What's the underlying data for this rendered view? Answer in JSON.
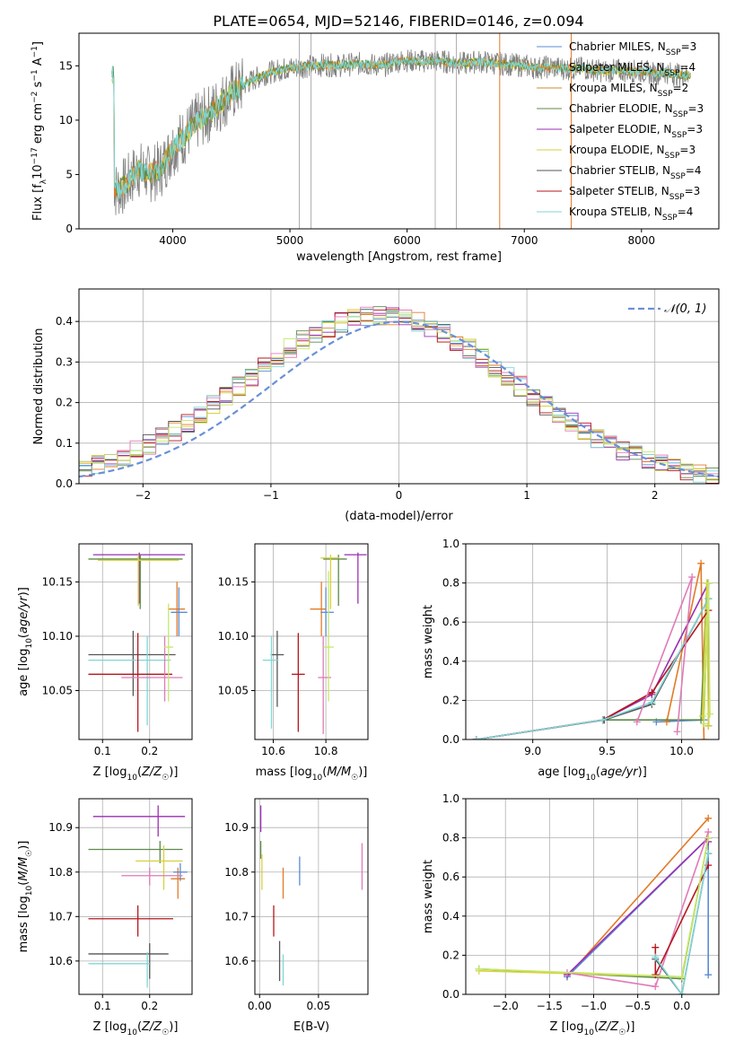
{
  "figure": {
    "title": "PLATE=0654, MJD=52146, FIBERID=0146, z=0.094"
  },
  "colors": {
    "Chabrier MILES": "#5b8bd6",
    "Salpeter MILES": "#e37a26",
    "Kroupa MILES": "#d08a2c",
    "Chabrier ELODIE": "#5c8a4a",
    "Salpeter ELODIE": "#9a2fb0",
    "Kroupa ELODIE": "#d6d23a",
    "Chabrier STELIB": "#555555",
    "Salpeter STELIB": "#b5161e",
    "Kroupa STELIB": "#7fd6d6",
    "extra_pink": "#e07ab8",
    "extra_lime": "#c5e86b",
    "extra_green": "#5c8a4a",
    "data_grey": "#808080",
    "gauss": "#6a8fd8",
    "grid": "#b0b0b0"
  },
  "chart_data": [
    {
      "id": "spectrum",
      "type": "line",
      "title": "PLATE=0654, MJD=52146, FIBERID=0146, z=0.094",
      "xlabel": "wavelength [Angstrom, rest frame]",
      "ylabel": "Flux [f",
      "ylabel_full": "Flux [fλ10−17 erg cm−2 s−1 A−1]",
      "xlim": [
        3200,
        8660
      ],
      "ylim": [
        0,
        18
      ],
      "xticks": [
        4000,
        5000,
        6000,
        7000,
        8000
      ],
      "yticks": [
        0,
        5,
        10,
        15
      ],
      "grid": false,
      "legend_position": "right",
      "legend": [
        {
          "label": "Chabrier MILES",
          "nssp": "3"
        },
        {
          "label": "Salpeter MILES",
          "nssp": "4"
        },
        {
          "label": "Kroupa MILES",
          "nssp": "2"
        },
        {
          "label": "Chabrier ELODIE",
          "nssp": "3"
        },
        {
          "label": "Salpeter ELODIE",
          "nssp": "3"
        },
        {
          "label": "Kroupa ELODIE",
          "nssp": "3"
        },
        {
          "label": "Chabrier STELIB",
          "nssp": "4"
        },
        {
          "label": "Salpeter STELIB",
          "nssp": "3"
        },
        {
          "label": "Kroupa STELIB",
          "nssp": "4"
        }
      ],
      "nssp_prefix": "N",
      "nssp_sub": "SSP",
      "envelope": {
        "x": [
          3500,
          3600,
          3700,
          3800,
          3900,
          4000,
          4100,
          4200,
          4300,
          4400,
          4500,
          4600,
          4700,
          4800,
          4900,
          5000,
          5100,
          5200,
          5300,
          5400,
          5500,
          5600,
          5700,
          5800,
          5900,
          6000,
          6100,
          6200,
          6300,
          6400,
          6500,
          6600,
          6700,
          6800,
          6900,
          7000,
          7100,
          7200,
          7300,
          7400,
          7500,
          7600,
          7700,
          7800,
          7900,
          8000,
          8100,
          8200,
          8300,
          8400
        ],
        "y": [
          3.5,
          4.0,
          5.5,
          5.0,
          5.5,
          7.5,
          8.5,
          9.8,
          10.5,
          11.5,
          12.5,
          13.2,
          13.8,
          14.3,
          14.6,
          14.8,
          14.9,
          15.0,
          15.1,
          15.0,
          15.1,
          15.2,
          15.1,
          15.0,
          15.4,
          15.5,
          15.4,
          15.5,
          15.4,
          15.3,
          15.2,
          15.4,
          15.3,
          15.2,
          15.1,
          15.0,
          14.8,
          14.9,
          14.8,
          14.7,
          14.8,
          14.6,
          14.5,
          14.6,
          14.5,
          14.5,
          14.3,
          14.4,
          14.2,
          14.1
        ]
      },
      "spikes_x": [
        5080,
        5180,
        6240,
        6420,
        6790,
        7400
      ]
    },
    {
      "id": "residuals",
      "type": "line",
      "xlabel": "(data-model)/error",
      "ylabel": "Normed distribution",
      "xlim": [
        -2.5,
        2.5
      ],
      "ylim": [
        0,
        0.48
      ],
      "xticks": [
        -2,
        -1,
        0,
        1,
        2
      ],
      "yticks": [
        0.0,
        0.1,
        0.2,
        0.3,
        0.4
      ],
      "grid": true,
      "legend_position": "top-right",
      "gauss_label": "𝒩(0, 1)"
    },
    {
      "id": "age_vs_Z",
      "type": "scatter",
      "xlabel": "Z [log",
      "xlabel_full": "Z [log10(Z/Z☉)]",
      "ylabel_full": "age [log10(age/yr)]",
      "xlim": [
        0.05,
        0.29
      ],
      "ylim": [
        10.005,
        10.185
      ],
      "xticks": [
        0.1,
        0.2
      ],
      "yticks": [
        10.05,
        10.1,
        10.15
      ],
      "grid": true,
      "points": [
        {
          "series": "Salpeter ELODIE",
          "x": 0.178,
          "y": 10.175,
          "xerr": [
            0.08,
            0.275
          ],
          "yerr": [
            10.13,
            10.177
          ]
        },
        {
          "series": "Chabrier ELODIE",
          "x": 0.18,
          "y": 10.171,
          "xerr": [
            0.07,
            0.27
          ],
          "yerr": [
            10.125,
            10.175
          ]
        },
        {
          "series": "Kroupa ELODIE",
          "x": 0.176,
          "y": 10.17,
          "xerr": [
            0.09,
            0.262
          ],
          "yerr": [
            10.128,
            10.175
          ]
        },
        {
          "series": "Salpeter MILES",
          "x": 0.258,
          "y": 10.125,
          "xerr": [
            0.24,
            0.275
          ],
          "yerr": [
            10.1,
            10.15
          ]
        },
        {
          "series": "Chabrier MILES",
          "x": 0.262,
          "y": 10.122,
          "xerr": [
            0.245,
            0.28
          ],
          "yerr": [
            10.1,
            10.145
          ]
        },
        {
          "series": "Chabrier STELIB",
          "x": 0.165,
          "y": 10.083,
          "xerr": [
            0.07,
            0.255
          ],
          "yerr": [
            10.045,
            10.105
          ]
        },
        {
          "series": "Kroupa STELIB",
          "x": 0.195,
          "y": 10.078,
          "xerr": [
            0.07,
            0.245
          ],
          "yerr": [
            10.018,
            10.1
          ]
        },
        {
          "series": "Salpeter STELIB",
          "x": 0.175,
          "y": 10.065,
          "xerr": [
            0.07,
            0.248
          ],
          "yerr": [
            10.012,
            10.103
          ]
        },
        {
          "series": "extra_pink",
          "x": 0.232,
          "y": 10.062,
          "xerr": [
            0.14,
            0.27
          ],
          "yerr": [
            10.04,
            10.1
          ]
        },
        {
          "series": "extra_lime",
          "x": 0.24,
          "y": 10.09,
          "xerr": [
            0.23,
            0.25
          ],
          "yerr": [
            10.04,
            10.13
          ]
        }
      ]
    },
    {
      "id": "age_vs_mass",
      "type": "scatter",
      "xlabel_full": "mass [log10(M/M☉)]",
      "xlim": [
        10.53,
        10.96
      ],
      "ylim": [
        10.005,
        10.185
      ],
      "xticks": [
        10.6,
        10.8
      ],
      "yticks": [
        10.05,
        10.1,
        10.15
      ],
      "grid": true,
      "points": [
        {
          "series": "Salpeter ELODIE",
          "x": 10.922,
          "y": 10.175,
          "xerr": [
            10.87,
            10.955
          ],
          "yerr": [
            10.13,
            10.177
          ]
        },
        {
          "series": "Chabrier ELODIE",
          "x": 10.848,
          "y": 10.171,
          "xerr": [
            10.79,
            10.88
          ],
          "yerr": [
            10.128,
            10.175
          ]
        },
        {
          "series": "Kroupa ELODIE",
          "x": 10.818,
          "y": 10.172,
          "xerr": [
            10.78,
            10.85
          ],
          "yerr": [
            10.125,
            10.175
          ]
        },
        {
          "series": "Salpeter MILES",
          "x": 10.783,
          "y": 10.125,
          "xerr": [
            10.74,
            10.8
          ],
          "yerr": [
            10.1,
            10.15
          ]
        },
        {
          "series": "Chabrier MILES",
          "x": 10.8,
          "y": 10.122,
          "xerr": [
            10.78,
            10.83
          ],
          "yerr": [
            10.1,
            10.145
          ]
        },
        {
          "series": "Chabrier STELIB",
          "x": 10.615,
          "y": 10.083,
          "xerr": [
            10.59,
            10.64
          ],
          "yerr": [
            10.035,
            10.105
          ]
        },
        {
          "series": "Kroupa STELIB",
          "x": 10.593,
          "y": 10.078,
          "xerr": [
            10.56,
            10.62
          ],
          "yerr": [
            10.015,
            10.1
          ]
        },
        {
          "series": "Salpeter STELIB",
          "x": 10.695,
          "y": 10.065,
          "xerr": [
            10.67,
            10.72
          ],
          "yerr": [
            10.012,
            10.103
          ]
        },
        {
          "series": "extra_pink",
          "x": 10.79,
          "y": 10.062,
          "xerr": [
            10.77,
            10.82
          ],
          "yerr": [
            10.01,
            10.1
          ]
        },
        {
          "series": "extra_lime",
          "x": 10.81,
          "y": 10.09,
          "xerr": [
            10.79,
            10.83
          ],
          "yerr": [
            10.04,
            10.16
          ]
        }
      ]
    },
    {
      "id": "massweight_vs_age",
      "type": "line",
      "xlabel_full": "age [log10(age/yr)]",
      "ylabel": "mass weight",
      "xlim": [
        8.55,
        10.25
      ],
      "ylim": [
        0,
        1.0
      ],
      "xticks": [
        9.0,
        9.5,
        10.0
      ],
      "yticks": [
        0.0,
        0.2,
        0.4,
        0.6,
        0.8,
        1.0
      ],
      "grid": true,
      "series": [
        {
          "name": "Chabrier MILES",
          "x": [
            9.83,
            10.15,
            10.18
          ],
          "y": [
            0.09,
            0.1,
            0.8
          ]
        },
        {
          "name": "Salpeter MILES",
          "x": [
            9.9,
            10.13,
            10.15
          ],
          "y": [
            0.09,
            0.9,
            0.0
          ]
        },
        {
          "name": "Chabrier ELODIE",
          "x": [
            9.48,
            10.13,
            10.17
          ],
          "y": [
            0.1,
            0.1,
            0.8
          ]
        },
        {
          "name": "Salpeter ELODIE",
          "x": [
            8.62,
            9.47,
            9.8,
            10.18,
            10.18
          ],
          "y": [
            0.0,
            0.1,
            0.23,
            0.8,
            0.07
          ]
        },
        {
          "name": "Kroupa ELODIE",
          "x": [
            10.14,
            10.17,
            10.18
          ],
          "y": [
            0.12,
            0.8,
            0.07
          ]
        },
        {
          "name": "Chabrier STELIB",
          "x": [
            8.62,
            9.48,
            9.8,
            10.18
          ],
          "y": [
            0.0,
            0.1,
            0.18,
            0.72
          ]
        },
        {
          "name": "Salpeter STELIB",
          "x": [
            8.62,
            9.47,
            9.8,
            10.18
          ],
          "y": [
            0.0,
            0.1,
            0.24,
            0.66
          ]
        },
        {
          "name": "Kroupa STELIB",
          "x": [
            8.62,
            9.47,
            9.8,
            10.18
          ],
          "y": [
            0.0,
            0.1,
            0.19,
            0.72
          ]
        },
        {
          "name": "extra_pink",
          "x": [
            9.7,
            10.07,
            9.97
          ],
          "y": [
            0.09,
            0.83,
            0.04
          ]
        },
        {
          "name": "extra_lime",
          "x": [
            10.15,
            10.18,
            10.19
          ],
          "y": [
            0.08,
            0.8,
            0.13
          ]
        }
      ]
    },
    {
      "id": "mass_vs_Z",
      "type": "scatter",
      "xlabel_full": "Z [log10(Z/Z☉)]",
      "ylabel_full": "mass [log10(M/M☉)]",
      "xlim": [
        0.05,
        0.29
      ],
      "ylim": [
        10.525,
        10.965
      ],
      "xticks": [
        0.1,
        0.2
      ],
      "yticks": [
        10.6,
        10.7,
        10.8,
        10.9
      ],
      "grid": true,
      "points": [
        {
          "series": "Salpeter ELODIE",
          "x": 0.218,
          "y": 10.925,
          "xerr": [
            0.08,
            0.275
          ],
          "yerr": [
            10.88,
            10.95
          ]
        },
        {
          "series": "Chabrier ELODIE",
          "x": 0.222,
          "y": 10.851,
          "xerr": [
            0.07,
            0.27
          ],
          "yerr": [
            10.82,
            10.87
          ]
        },
        {
          "series": "Kroupa ELODIE",
          "x": 0.23,
          "y": 10.825,
          "xerr": [
            0.17,
            0.27
          ],
          "yerr": [
            10.76,
            10.86
          ]
        },
        {
          "series": "Salpeter MILES",
          "x": 0.26,
          "y": 10.785,
          "xerr": [
            0.245,
            0.275
          ],
          "yerr": [
            10.74,
            10.81
          ]
        },
        {
          "series": "Chabrier MILES",
          "x": 0.265,
          "y": 10.8,
          "xerr": [
            0.25,
            0.28
          ],
          "yerr": [
            10.78,
            10.82
          ]
        },
        {
          "series": "extra_pink",
          "x": 0.2,
          "y": 10.792,
          "xerr": [
            0.14,
            0.27
          ],
          "yerr": [
            10.77,
            10.81
          ]
        },
        {
          "series": "Salpeter STELIB",
          "x": 0.175,
          "y": 10.695,
          "xerr": [
            0.07,
            0.25
          ],
          "yerr": [
            10.655,
            10.725
          ]
        },
        {
          "series": "Chabrier STELIB",
          "x": 0.2,
          "y": 10.616,
          "xerr": [
            0.07,
            0.24
          ],
          "yerr": [
            10.56,
            10.64
          ]
        },
        {
          "series": "Kroupa STELIB",
          "x": 0.195,
          "y": 10.594,
          "xerr": [
            0.07,
            0.2
          ],
          "yerr": [
            10.54,
            10.62
          ]
        }
      ]
    },
    {
      "id": "mass_vs_ebv",
      "type": "scatter",
      "xlabel": "E(B-V)",
      "xlim": [
        -0.004,
        0.092
      ],
      "ylim": [
        10.525,
        10.965
      ],
      "xticks": [
        0.0,
        0.05
      ],
      "yticks": [
        10.6,
        10.7,
        10.8,
        10.9
      ],
      "grid": true,
      "points": [
        {
          "series": "Salpeter ELODIE",
          "x": 0.001,
          "y": 10.925,
          "yerr": [
            10.89,
            10.95
          ]
        },
        {
          "series": "Chabrier ELODIE",
          "x": 0.001,
          "y": 10.851,
          "yerr": [
            10.83,
            10.87
          ]
        },
        {
          "series": "Kroupa ELODIE",
          "x": 0.002,
          "y": 10.8,
          "yerr": [
            10.76,
            10.84
          ]
        },
        {
          "series": "Salpeter MILES",
          "x": 0.02,
          "y": 10.78,
          "yerr": [
            10.74,
            10.81
          ]
        },
        {
          "series": "Chabrier MILES",
          "x": 0.034,
          "y": 10.8,
          "yerr": [
            10.77,
            10.835
          ]
        },
        {
          "series": "extra_pink",
          "x": 0.087,
          "y": 10.81,
          "yerr": [
            10.76,
            10.865
          ]
        },
        {
          "series": "Salpeter STELIB",
          "x": 0.012,
          "y": 10.69,
          "yerr": [
            10.655,
            10.725
          ]
        },
        {
          "series": "Chabrier STELIB",
          "x": 0.017,
          "y": 10.6,
          "yerr": [
            10.555,
            10.645
          ]
        },
        {
          "series": "Kroupa STELIB",
          "x": 0.02,
          "y": 10.58,
          "yerr": [
            10.545,
            10.615
          ]
        }
      ]
    },
    {
      "id": "massweight_vs_Z",
      "type": "line",
      "xlabel_full": "Z [log10(Z/Z☉)]",
      "ylabel": "mass weight",
      "xlim": [
        -2.45,
        0.42
      ],
      "ylim": [
        0,
        1.0
      ],
      "xticks": [
        -2.0,
        -1.5,
        -1.0,
        -0.5,
        0.0
      ],
      "yticks": [
        0.0,
        0.2,
        0.4,
        0.6,
        0.8,
        1.0
      ],
      "grid": true,
      "series": [
        {
          "name": "Salpeter MILES",
          "x": [
            -1.3,
            0.3
          ],
          "y": [
            0.09,
            0.9
          ]
        },
        {
          "name": "Chabrier MILES",
          "x": [
            -1.3,
            0.3,
            0.3
          ],
          "y": [
            0.09,
            0.8,
            0.1
          ]
        },
        {
          "name": "Chabrier ELODIE",
          "x": [
            -2.3,
            0.0,
            0.3
          ],
          "y": [
            0.13,
            0.08,
            0.8
          ]
        },
        {
          "name": "Kroupa ELODIE",
          "x": [
            -2.3,
            0.0,
            0.3
          ],
          "y": [
            0.12,
            0.09,
            0.8
          ]
        },
        {
          "name": "Salpeter ELODIE",
          "x": [
            -1.3,
            0.3,
            0.3
          ],
          "y": [
            0.1,
            0.8,
            0.78
          ]
        },
        {
          "name": "extra_pink",
          "x": [
            -1.3,
            -0.3,
            0.3
          ],
          "y": [
            0.11,
            0.04,
            0.83
          ]
        },
        {
          "name": "Salpeter STELIB",
          "x": [
            -0.3,
            -0.3,
            0.3
          ],
          "y": [
            0.24,
            0.1,
            0.66
          ]
        },
        {
          "name": "Chabrier STELIB",
          "x": [
            -0.3,
            0.0,
            0.3
          ],
          "y": [
            0.18,
            0.0,
            0.72
          ]
        },
        {
          "name": "Kroupa STELIB",
          "x": [
            -0.3,
            0.0,
            0.3
          ],
          "y": [
            0.19,
            0.0,
            0.72
          ]
        },
        {
          "name": "extra_lime",
          "x": [
            -2.3,
            0.0,
            0.3
          ],
          "y": [
            0.13,
            0.09,
            0.8
          ]
        }
      ]
    }
  ]
}
